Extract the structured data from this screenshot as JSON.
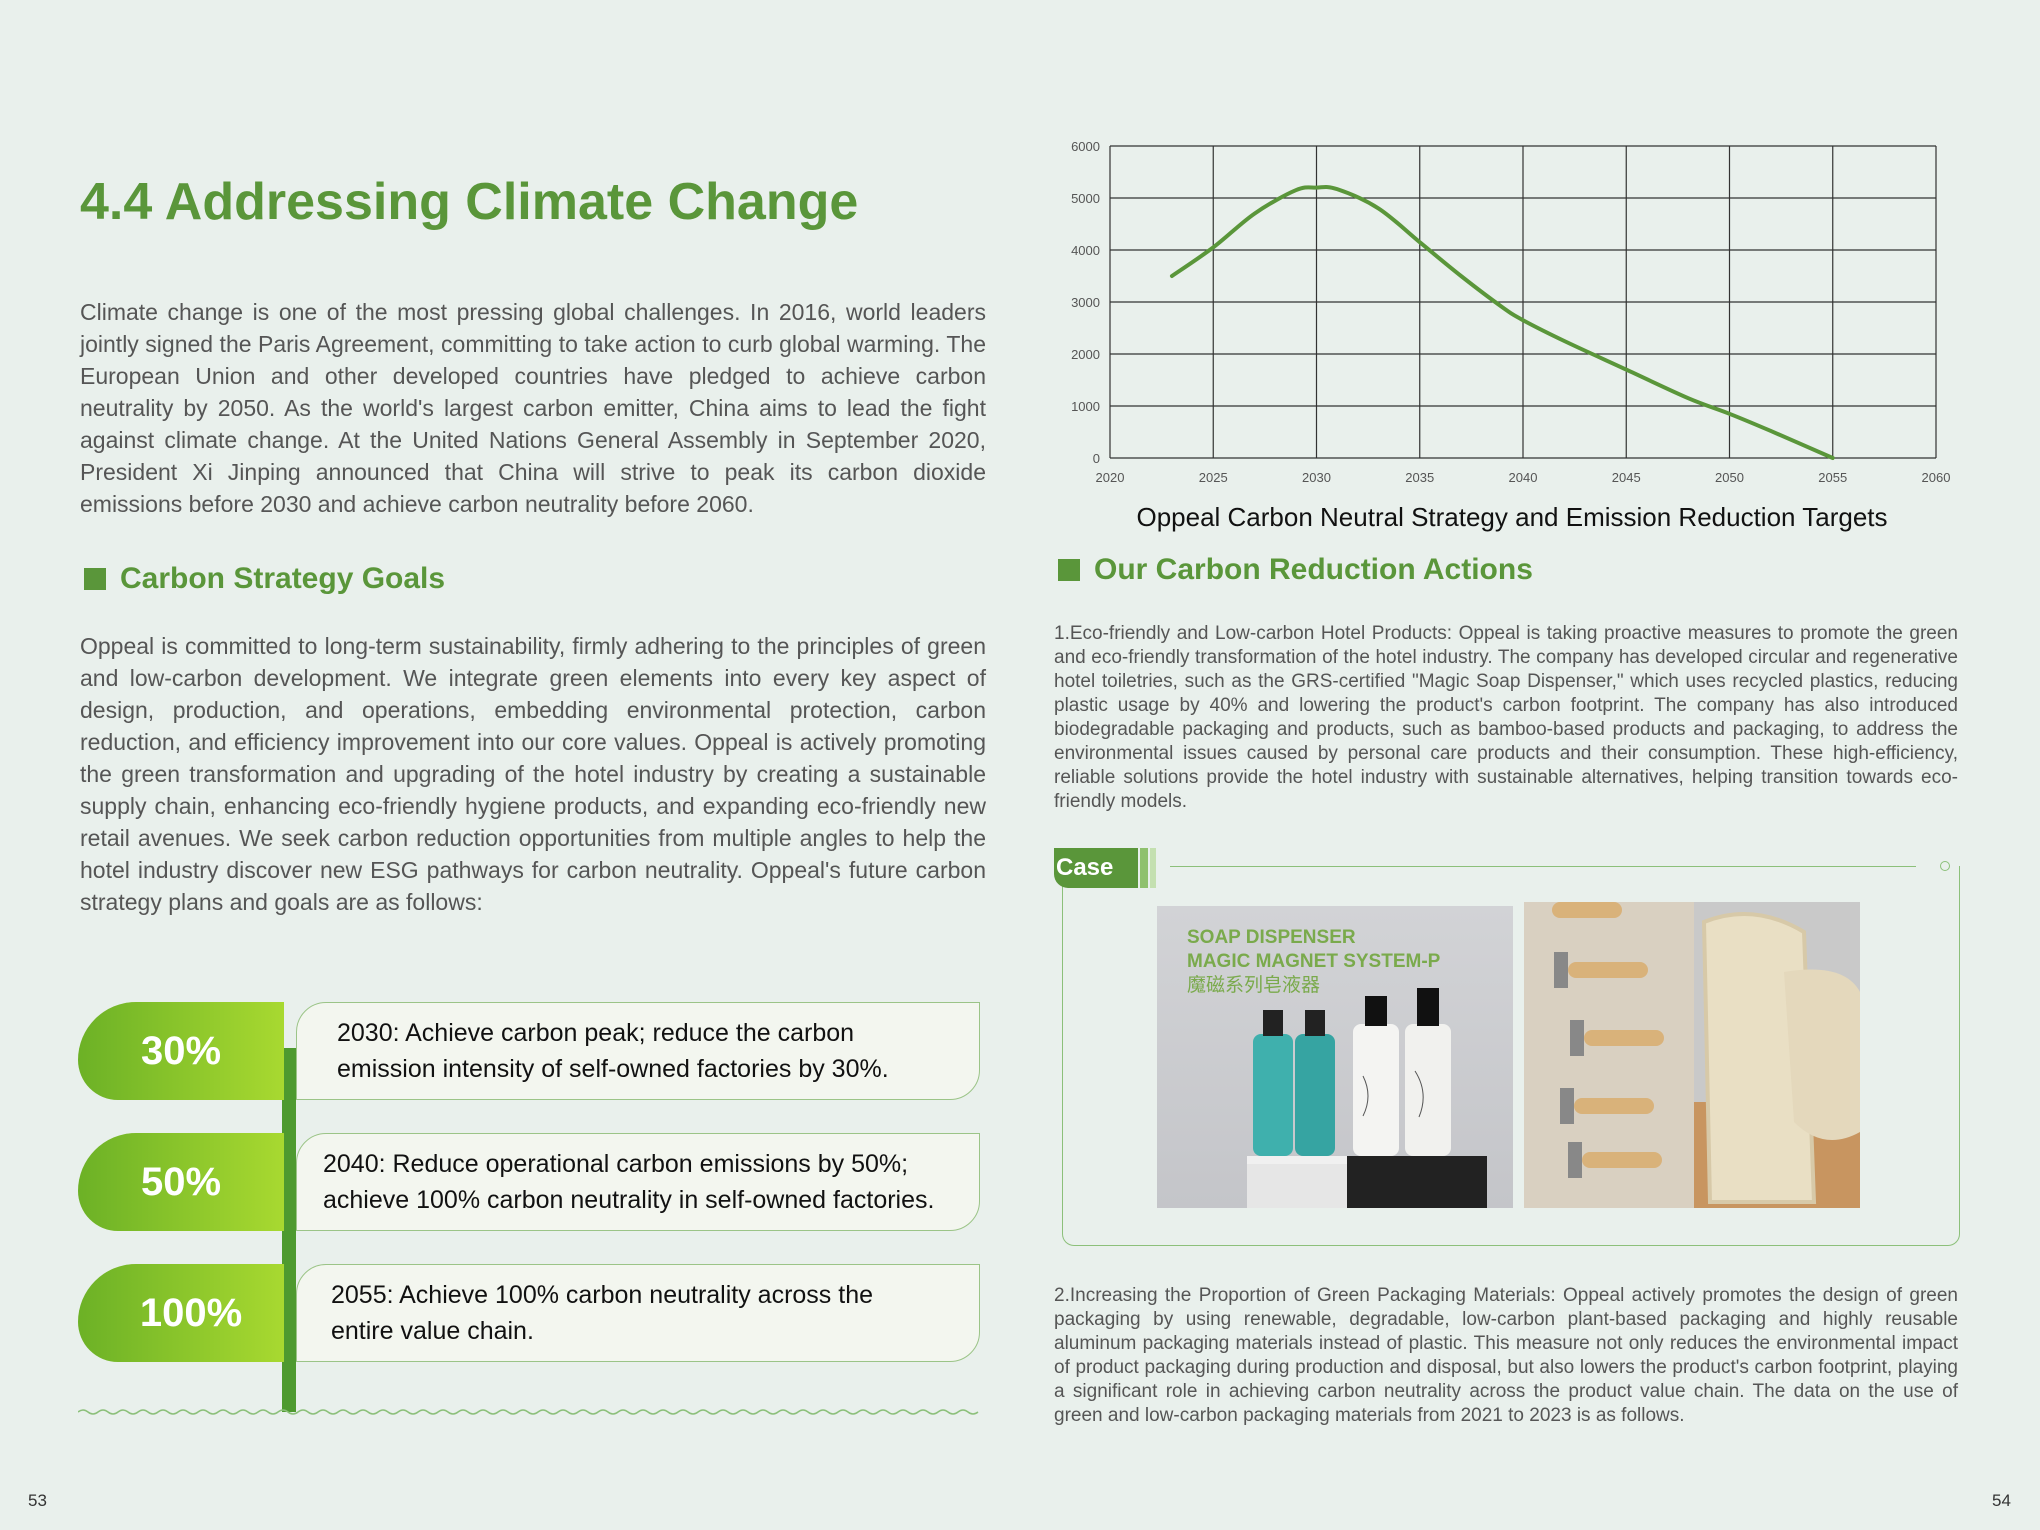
{
  "title": "4.4 Addressing Climate Change",
  "intro": "Climate change is one of the most pressing global challenges. In 2016, world leaders jointly signed the Paris Agreement, committing to take action to curb global warming. The European Union and other developed countries have pledged to achieve carbon neutrality by 2050. As the world's largest carbon emitter, China aims to lead the fight against climate change. At the United Nations General Assembly in September 2020, President Xi Jinping announced that China will strive to peak its carbon dioxide emissions before 2030 and achieve carbon neutrality before 2060.",
  "goals_section": {
    "heading": "Carbon Strategy Goals",
    "text": "Oppeal is committed to long-term sustainability, firmly adhering to the principles of green and low-carbon development. We integrate green elements into every key aspect of design, production, and operations, embedding environmental protection, carbon reduction, and efficiency improvement into our core values. Oppeal is actively promoting the green transformation and upgrading of the hotel industry by creating a sustainable supply chain, enhancing eco-friendly hygiene products, and expanding eco-friendly new retail avenues. We seek carbon reduction opportunities from multiple angles to help the hotel industry discover new ESG pathways for carbon neutrality. Oppeal's future carbon strategy plans and goals are as follows:",
    "goals": [
      {
        "percent": "30%",
        "line1": "2030: Achieve carbon peak; reduce the carbon",
        "line2": "emission intensity of self-owned factories by 30%."
      },
      {
        "percent": "50%",
        "line1": "2040: Reduce operational carbon emissions by 50%;",
        "line2": "achieve 100% carbon neutrality in self-owned factories."
      },
      {
        "percent": "100%",
        "line1": "2055: Achieve 100% carbon neutrality across the",
        "line2": "entire value chain."
      }
    ]
  },
  "chart_data": {
    "type": "line",
    "title": "Oppeal Carbon Neutral Strategy and Emission Reduction Targets",
    "xlabel": "",
    "ylabel": "",
    "xlim": [
      2020,
      2060
    ],
    "ylim": [
      0,
      6000
    ],
    "x_ticks": [
      "2020",
      "2025",
      "2030",
      "2035",
      "2040",
      "2045",
      "2050",
      "2055",
      "2060"
    ],
    "y_ticks": [
      "0",
      "1000",
      "2000",
      "3000",
      "4000",
      "5000",
      "6000"
    ],
    "grid": true,
    "series": [
      {
        "color": "#5a963a",
        "points": [
          [
            2023,
            3500
          ],
          [
            2025,
            4050
          ],
          [
            2027,
            4700
          ],
          [
            2029,
            5150
          ],
          [
            2030,
            5200
          ],
          [
            2031,
            5170
          ],
          [
            2033,
            4800
          ],
          [
            2035,
            4150
          ],
          [
            2037,
            3500
          ],
          [
            2039,
            2900
          ],
          [
            2040,
            2650
          ],
          [
            2042,
            2250
          ],
          [
            2045,
            1700
          ],
          [
            2048,
            1150
          ],
          [
            2050,
            850
          ],
          [
            2052,
            520
          ],
          [
            2055,
            0
          ]
        ]
      }
    ]
  },
  "actions_section": {
    "heading": "Our Carbon Reduction Actions",
    "item1": "1.Eco-friendly and Low-carbon Hotel Products:  Oppeal is taking proactive measures to promote the green and eco-friendly transformation of the hotel industry. The company has developed circular and regenerative hotel toiletries, such as the GRS-certified \"Magic Soap Dispenser,\" which uses recycled plastics, reducing plastic usage by 40% and lowering the product's carbon footprint. The company has also introduced biodegradable packaging and products, such as bamboo-based products and packaging, to address the environmental issues caused by personal care products and their consumption. These high-efficiency, reliable solutions provide the hotel industry with sustainable alternatives, helping transition towards eco-friendly models.",
    "case_label": "Case",
    "image_text": [
      "SOAP DISPENSER",
      "MAGIC MAGNET SYSTEM-P",
      "魔磁系列皂液器"
    ],
    "item2": "2.Increasing the Proportion of Green Packaging Materials:  Oppeal actively promotes the design of green packaging by using renewable, degradable, low-carbon plant-based packaging and highly reusable aluminum packaging materials instead of plastic. This measure not only reduces the environmental impact of product packaging during production and disposal, but also lowers the product's carbon footprint, playing a significant role in achieving carbon neutrality across the product value chain. The data on the use of green and low-carbon packaging materials from 2021 to 2023 is as follows."
  },
  "page_left": "53",
  "page_right": "54",
  "colors": {
    "accent": "#5a963a",
    "background": "#e9f0ec"
  }
}
